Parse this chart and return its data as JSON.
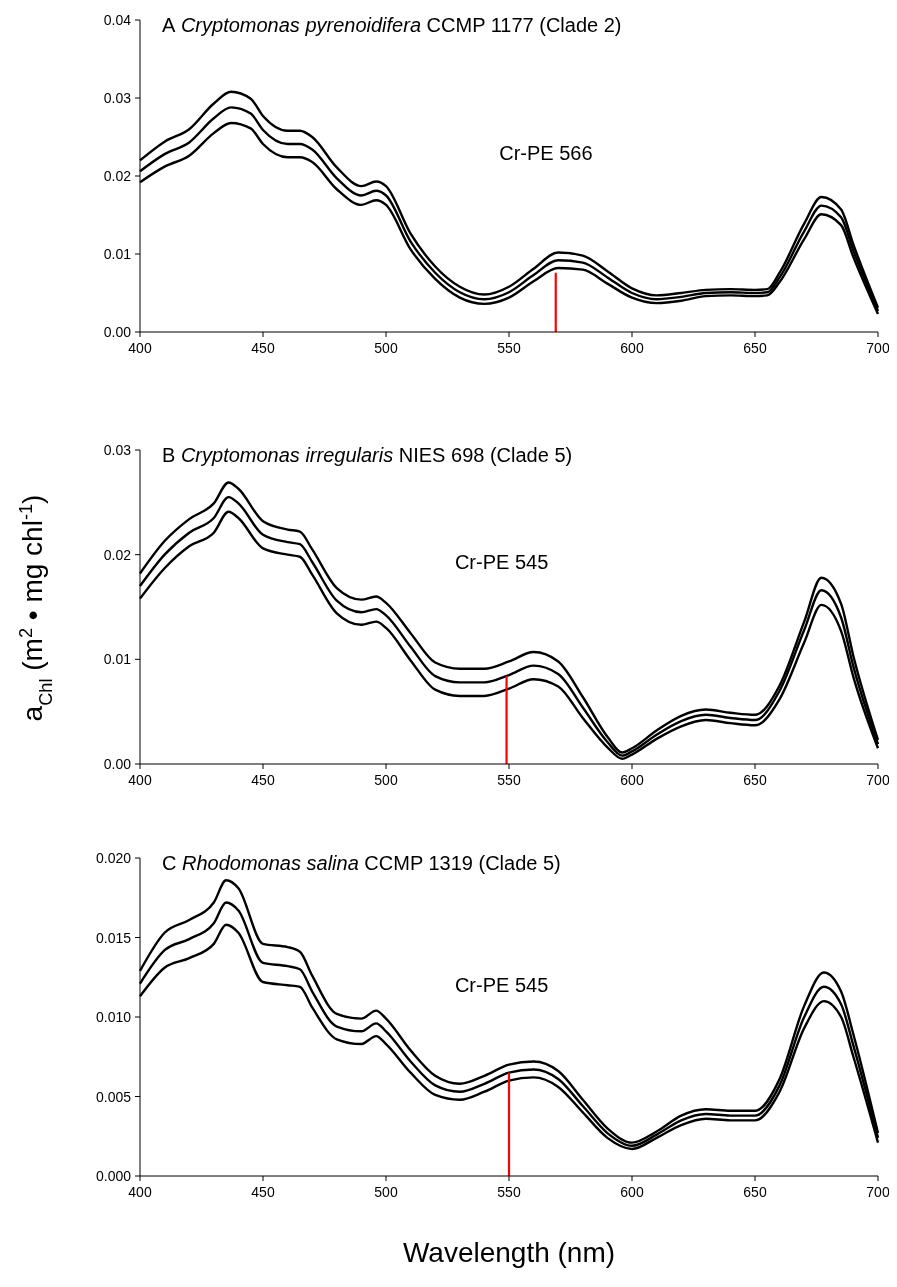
{
  "chart_data": [
    {
      "type": "line",
      "title": "A Cryptomonas pyrenoidifera CCMP 1177 (Clade 2)",
      "xlim": [
        400,
        700
      ],
      "xticks": [
        400,
        450,
        500,
        550,
        600,
        650,
        700
      ],
      "ylim": [
        0,
        0.04
      ],
      "yticks": [
        {
          "value": 0,
          "label": "0.00"
        },
        {
          "value": 0.01,
          "label": "0.01"
        },
        {
          "value": 0.02,
          "label": "0.02"
        },
        {
          "value": 0.03,
          "label": "0.03"
        },
        {
          "value": 0.04,
          "label": "0.04"
        }
      ],
      "grid": false,
      "line_style": "solid",
      "annotations": [
        "Cr-PE 566"
      ],
      "x": [
        400,
        410,
        420,
        430,
        437,
        445,
        450,
        460,
        465,
        470,
        480,
        490,
        496,
        500,
        510,
        520,
        530,
        540,
        550,
        560,
        570,
        580,
        590,
        600,
        610,
        620,
        630,
        640,
        650,
        655,
        660,
        670,
        677,
        685,
        690,
        700
      ],
      "series": [
        {
          "color": "#000000",
          "values": [
            0.022,
            0.0244,
            0.026,
            0.0293,
            0.0308,
            0.0299,
            0.0277,
            0.0258,
            0.0258,
            0.025,
            0.0211,
            0.0187,
            0.0193,
            0.0187,
            0.0126,
            0.0084,
            0.0058,
            0.0048,
            0.0058,
            0.0081,
            0.0102,
            0.0098,
            0.0078,
            0.0056,
            0.0047,
            0.005,
            0.0054,
            0.0055,
            0.0054,
            0.0055,
            0.0076,
            0.0139,
            0.0173,
            0.0157,
            0.0112,
            0.0031
          ]
        },
        {
          "color": "#000000",
          "values": [
            0.0206,
            0.0228,
            0.0243,
            0.0274,
            0.0288,
            0.028,
            0.0259,
            0.0241,
            0.0241,
            0.0234,
            0.0197,
            0.0175,
            0.0181,
            0.0175,
            0.0116,
            0.0076,
            0.0051,
            0.0042,
            0.0051,
            0.0073,
            0.0092,
            0.0089,
            0.007,
            0.005,
            0.0042,
            0.0045,
            0.005,
            0.0051,
            0.005,
            0.0051,
            0.007,
            0.0129,
            0.0162,
            0.0147,
            0.0104,
            0.0027
          ]
        },
        {
          "color": "#000000",
          "values": [
            0.0192,
            0.0212,
            0.0226,
            0.0255,
            0.0268,
            0.0261,
            0.0241,
            0.0224,
            0.0224,
            0.0218,
            0.0183,
            0.0163,
            0.0169,
            0.0163,
            0.0106,
            0.0068,
            0.0044,
            0.0036,
            0.0044,
            0.0065,
            0.0082,
            0.008,
            0.0062,
            0.0044,
            0.0037,
            0.004,
            0.0046,
            0.0047,
            0.0046,
            0.0047,
            0.0064,
            0.0119,
            0.0151,
            0.0137,
            0.0096,
            0.0023
          ]
        },
        {
          "type": "line",
          "color": "#ff0000",
          "x": [
            569,
            569
          ],
          "values": [
            0,
            0.0076
          ]
        }
      ]
    },
    {
      "type": "line",
      "title": "B Cryptomonas irregularis NIES 698 (Clade 5)",
      "ylabel": "a$_{Chl}$ (m$^{2}$ • mg chl$^{-1}$)",
      "xlim": [
        400,
        700
      ],
      "xticks": [
        400,
        450,
        500,
        550,
        600,
        650,
        700
      ],
      "ylim": [
        0,
        0.03
      ],
      "yticks": [
        {
          "value": 0,
          "label": "0.00"
        },
        {
          "value": 0.01,
          "label": "0.01"
        },
        {
          "value": 0.02,
          "label": "0.02"
        },
        {
          "value": 0.03,
          "label": "0.03"
        }
      ],
      "grid": false,
      "line_style": "solid",
      "annotations": [
        "Cr-PE 545"
      ],
      "x": [
        400,
        410,
        420,
        430,
        436,
        440,
        450,
        460,
        465,
        470,
        480,
        490,
        496,
        500,
        510,
        520,
        530,
        540,
        550,
        560,
        570,
        580,
        590,
        596,
        600,
        610,
        620,
        630,
        640,
        650,
        660,
        670,
        677,
        685,
        690,
        700
      ],
      "series": [
        {
          "color": "#000000",
          "values": [
            0.0182,
            0.0213,
            0.0234,
            0.0249,
            0.0269,
            0.0263,
            0.0232,
            0.0224,
            0.0222,
            0.0205,
            0.0168,
            0.0157,
            0.016,
            0.0154,
            0.0125,
            0.0097,
            0.0091,
            0.0091,
            0.0098,
            0.0107,
            0.0098,
            0.0064,
            0.0026,
            0.0011,
            0.0015,
            0.0032,
            0.0046,
            0.0052,
            0.0049,
            0.0047,
            0.0075,
            0.0136,
            0.0178,
            0.0153,
            0.0103,
            0.0023
          ]
        },
        {
          "color": "#000000",
          "values": [
            0.017,
            0.02,
            0.0221,
            0.0235,
            0.0255,
            0.0249,
            0.0219,
            0.0212,
            0.021,
            0.0193,
            0.0156,
            0.0145,
            0.0148,
            0.0142,
            0.0112,
            0.0084,
            0.0078,
            0.0078,
            0.0085,
            0.0094,
            0.0086,
            0.0054,
            0.0021,
            0.0008,
            0.0012,
            0.0028,
            0.0041,
            0.0047,
            0.0044,
            0.0042,
            0.007,
            0.0128,
            0.0166,
            0.014,
            0.0093,
            0.0019
          ]
        },
        {
          "color": "#000000",
          "values": [
            0.0158,
            0.0187,
            0.0208,
            0.0221,
            0.0241,
            0.0235,
            0.0206,
            0.02,
            0.0198,
            0.0181,
            0.0144,
            0.0133,
            0.0136,
            0.013,
            0.0099,
            0.0071,
            0.0065,
            0.0065,
            0.0072,
            0.0081,
            0.0074,
            0.0044,
            0.0016,
            0.0005,
            0.0009,
            0.0024,
            0.0036,
            0.0042,
            0.0039,
            0.0037,
            0.0062,
            0.0116,
            0.0152,
            0.0127,
            0.0083,
            0.0015
          ]
        },
        {
          "type": "line",
          "color": "#ff0000",
          "x": [
            549,
            549
          ],
          "values": [
            0,
            0.0084
          ]
        }
      ]
    },
    {
      "type": "line",
      "title": "C Rhodomonas salina CCMP 1319 (Clade 5)",
      "xlabel": "Wavelength (nm)",
      "xlim": [
        400,
        700
      ],
      "xticks": [
        400,
        450,
        500,
        550,
        600,
        650,
        700
      ],
      "ylim": [
        0,
        0.02
      ],
      "yticks": [
        {
          "value": 0,
          "label": "0.000"
        },
        {
          "value": 0.005,
          "label": "0.005"
        },
        {
          "value": 0.01,
          "label": "0.010"
        },
        {
          "value": 0.015,
          "label": "0.015"
        },
        {
          "value": 0.02,
          "label": "0.020"
        }
      ],
      "grid": false,
      "line_style": "solid",
      "annotations": [
        "Cr-PE 545"
      ],
      "x": [
        400,
        410,
        420,
        430,
        435,
        440,
        450,
        460,
        465,
        470,
        480,
        490,
        496,
        500,
        510,
        520,
        530,
        540,
        550,
        560,
        570,
        580,
        590,
        600,
        610,
        620,
        630,
        640,
        650,
        660,
        670,
        678,
        685,
        690,
        700
      ],
      "series": [
        {
          "color": "#000000",
          "values": [
            0.0129,
            0.0153,
            0.0161,
            0.0172,
            0.0186,
            0.0181,
            0.0146,
            0.0144,
            0.0141,
            0.0126,
            0.0102,
            0.0099,
            0.0104,
            0.0099,
            0.0079,
            0.0063,
            0.0058,
            0.0063,
            0.007,
            0.0072,
            0.0066,
            0.0048,
            0.003,
            0.0021,
            0.0028,
            0.0038,
            0.0042,
            0.0041,
            0.0041,
            0.0061,
            0.0107,
            0.0128,
            0.0116,
            0.0089,
            0.0027
          ]
        },
        {
          "color": "#000000",
          "values": [
            0.0121,
            0.0142,
            0.0149,
            0.0159,
            0.0172,
            0.0167,
            0.0134,
            0.0132,
            0.013,
            0.0116,
            0.0094,
            0.0091,
            0.0096,
            0.0091,
            0.0072,
            0.0057,
            0.0053,
            0.0058,
            0.0065,
            0.0067,
            0.0061,
            0.0044,
            0.0027,
            0.0019,
            0.0026,
            0.0035,
            0.0039,
            0.0038,
            0.0038,
            0.0057,
            0.01,
            0.0119,
            0.0108,
            0.0082,
            0.0024
          ]
        },
        {
          "color": "#000000",
          "values": [
            0.0113,
            0.0131,
            0.0137,
            0.0146,
            0.0158,
            0.0153,
            0.0122,
            0.012,
            0.0119,
            0.0106,
            0.0086,
            0.0083,
            0.0088,
            0.0083,
            0.0065,
            0.0051,
            0.0048,
            0.0053,
            0.006,
            0.0062,
            0.0056,
            0.004,
            0.0024,
            0.0017,
            0.0024,
            0.0032,
            0.0036,
            0.0035,
            0.0035,
            0.0053,
            0.0093,
            0.011,
            0.01,
            0.0075,
            0.0021
          ]
        },
        {
          "type": "line",
          "color": "#ff0000",
          "x": [
            550,
            550
          ],
          "values": [
            0,
            0.0065
          ]
        }
      ]
    }
  ]
}
